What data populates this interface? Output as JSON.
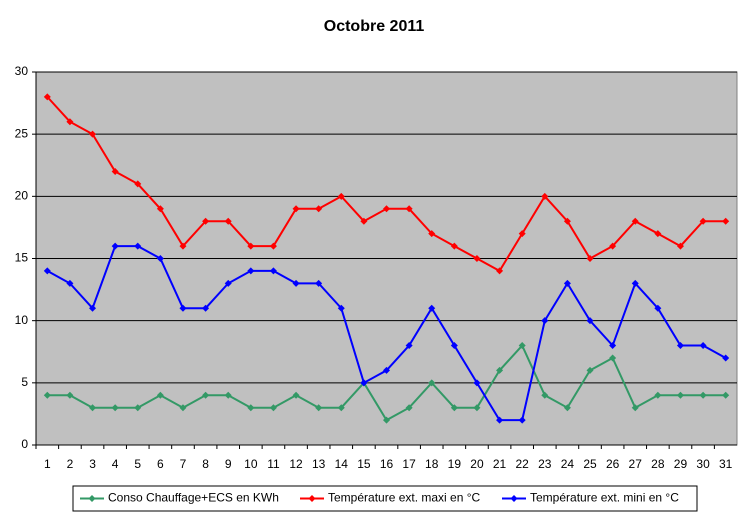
{
  "chart_data": {
    "type": "line",
    "title": "Octobre 2011",
    "categories": [
      "1",
      "2",
      "3",
      "4",
      "5",
      "6",
      "7",
      "8",
      "9",
      "10",
      "11",
      "12",
      "13",
      "14",
      "15",
      "16",
      "17",
      "18",
      "19",
      "20",
      "21",
      "22",
      "23",
      "24",
      "25",
      "26",
      "27",
      "28",
      "29",
      "30",
      "31"
    ],
    "series": [
      {
        "name": "Conso Chauffage+ECS en KWh",
        "color": "#339966",
        "values": [
          4,
          4,
          3,
          3,
          3,
          4,
          3,
          4,
          4,
          3,
          3,
          4,
          3,
          3,
          5,
          2,
          3,
          5,
          3,
          3,
          6,
          8,
          4,
          3,
          6,
          7,
          3,
          4,
          4,
          4,
          4
        ]
      },
      {
        "name": "Température ext. maxi en °C",
        "color": "#ff0000",
        "values": [
          28,
          26,
          25,
          22,
          21,
          19,
          16,
          18,
          18,
          16,
          16,
          19,
          19,
          20,
          18,
          19,
          19,
          17,
          16,
          15,
          14,
          17,
          20,
          18,
          15,
          16,
          18,
          17,
          16,
          18,
          18
        ]
      },
      {
        "name": "Température ext. mini en °C",
        "color": "#0000ff",
        "values": [
          14,
          13,
          11,
          16,
          16,
          15,
          11,
          11,
          13,
          14,
          14,
          13,
          13,
          11,
          5,
          6,
          8,
          11,
          8,
          5,
          2,
          2,
          10,
          13,
          10,
          8,
          13,
          11,
          8,
          8,
          7
        ]
      }
    ],
    "ylim": [
      0,
      30
    ],
    "yticks": [
      0,
      5,
      10,
      15,
      20,
      25,
      30
    ],
    "grid": true,
    "legend": "bottom",
    "background": "#c0c0c0"
  }
}
